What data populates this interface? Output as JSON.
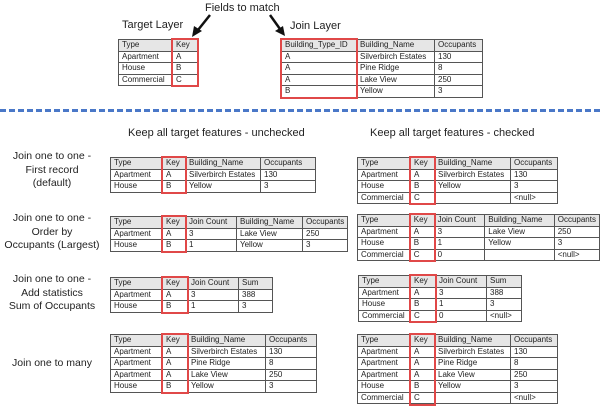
{
  "top": {
    "fields_to_match": "Fields to match",
    "target_layer_label": "Target Layer",
    "join_layer_label": "Join Layer",
    "target_table": {
      "columns": [
        "Type",
        "Key"
      ],
      "rows": [
        [
          "Apartment",
          "A"
        ],
        [
          "House",
          "B"
        ],
        [
          "Commercial",
          "C"
        ]
      ]
    },
    "join_table": {
      "columns": [
        "Building_Type_ID",
        "Building_Name",
        "Occupants"
      ],
      "rows": [
        [
          "A",
          "Silverbirch Estates",
          "130"
        ],
        [
          "A",
          "Pine Ridge",
          "8"
        ],
        [
          "A",
          "Lake View",
          "250"
        ],
        [
          "B",
          "Yellow",
          "3"
        ]
      ]
    }
  },
  "headers": {
    "unchecked": "Keep all target features - unchecked",
    "checked": "Keep all target features - checked"
  },
  "scenarios": [
    {
      "label": "Join one to one -\nFirst record\n(default)",
      "unchecked": {
        "columns": [
          "Type",
          "Key",
          "Building_Name",
          "Occupants"
        ],
        "rows": [
          [
            "Apartment",
            "A",
            "Silverbirch Estates",
            "130"
          ],
          [
            "House",
            "B",
            "Yellow",
            "3"
          ]
        ]
      },
      "checked": {
        "columns": [
          "Type",
          "Key",
          "Building_Name",
          "Occupants"
        ],
        "rows": [
          [
            "Apartment",
            "A",
            "Silverbirch Estates",
            "130"
          ],
          [
            "House",
            "B",
            "Yellow",
            "3"
          ],
          [
            "Commercial",
            "C",
            "",
            "<null>"
          ]
        ]
      }
    },
    {
      "label": "Join one to one -\nOrder by\nOccupants (Largest)",
      "unchecked": {
        "columns": [
          "Type",
          "Key",
          "Join Count",
          "Building_Name",
          "Occupants"
        ],
        "rows": [
          [
            "Apartment",
            "A",
            "3",
            "Lake View",
            "250"
          ],
          [
            "House",
            "B",
            "1",
            "Yellow",
            "3"
          ]
        ]
      },
      "checked": {
        "columns": [
          "Type",
          "Key",
          "Join Count",
          "Building_Name",
          "Occupants"
        ],
        "rows": [
          [
            "Apartment",
            "A",
            "3",
            "Lake View",
            "250"
          ],
          [
            "House",
            "B",
            "1",
            "Yellow",
            "3"
          ],
          [
            "Commercial",
            "C",
            "0",
            "",
            "<null>"
          ]
        ]
      }
    },
    {
      "label": "Join one to one -\nAdd statistics\nSum of Occupants",
      "unchecked": {
        "columns": [
          "Type",
          "Key",
          "Join Count",
          "Sum"
        ],
        "rows": [
          [
            "Apartment",
            "A",
            "3",
            "388"
          ],
          [
            "House",
            "B",
            "1",
            "3"
          ]
        ]
      },
      "checked": {
        "columns": [
          "Type",
          "Key",
          "Join Count",
          "Sum"
        ],
        "rows": [
          [
            "Apartment",
            "A",
            "3",
            "388"
          ],
          [
            "House",
            "B",
            "1",
            "3"
          ],
          [
            "Commercial",
            "C",
            "0",
            "<null>"
          ]
        ]
      }
    },
    {
      "label": "Join one to many",
      "unchecked": {
        "columns": [
          "Type",
          "Key",
          "Building_Name",
          "Occupants"
        ],
        "rows": [
          [
            "Apartment",
            "A",
            "Silverbirch Estates",
            "130"
          ],
          [
            "Apartment",
            "A",
            "Pine Ridge",
            "8"
          ],
          [
            "Apartment",
            "A",
            "Lake View",
            "250"
          ],
          [
            "House",
            "B",
            "Yellow",
            "3"
          ]
        ]
      },
      "checked": {
        "columns": [
          "Type",
          "Key",
          "Building_Name",
          "Occupants"
        ],
        "rows": [
          [
            "Apartment",
            "A",
            "Silverbirch Estates",
            "130"
          ],
          [
            "Apartment",
            "A",
            "Pine Ridge",
            "8"
          ],
          [
            "Apartment",
            "A",
            "Lake View",
            "250"
          ],
          [
            "House",
            "B",
            "Yellow",
            "3"
          ],
          [
            "Commercial",
            "C",
            "",
            "<null>"
          ]
        ]
      }
    }
  ],
  "colors": {
    "highlight": "#e04848",
    "divider": "#4a78c8"
  }
}
